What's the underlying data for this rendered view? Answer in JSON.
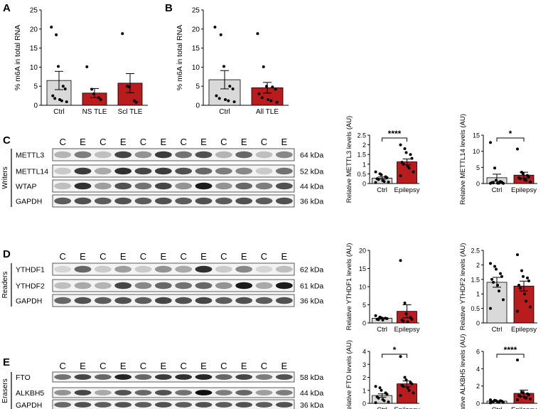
{
  "panel_letters": [
    "A",
    "B",
    "C",
    "D",
    "E"
  ],
  "colors": {
    "ctrl_fill": "#d9d9d9",
    "tle_fill": "#b81c1c",
    "axis": "#000000",
    "point": "#000000"
  },
  "chart_data": [
    {
      "id": "A",
      "type": "bar",
      "ylabel": "% m6A in total RNA",
      "ylim": [
        0,
        25
      ],
      "yticks": [
        0,
        5,
        10,
        15,
        20,
        25
      ],
      "categories": [
        "Ctrl",
        "NS TLE",
        "Scl TLE"
      ],
      "values": [
        6.5,
        3.2,
        5.8
      ],
      "sem": [
        2.4,
        1.2,
        2.5
      ],
      "points": [
        [
          20.5,
          18.5,
          10.2,
          5.0,
          4.3,
          2.5,
          1.8,
          1.5,
          1.2,
          0.9
        ],
        [
          10.1,
          4.2,
          3.0,
          2.0,
          1.5
        ],
        [
          18.8,
          5.0,
          4.8,
          1.2,
          0.8
        ]
      ],
      "bar_colors": [
        "#d9d9d9",
        "#b81c1c",
        "#b81c1c"
      ]
    },
    {
      "id": "B",
      "type": "bar",
      "ylabel": "% m6A in total RNA",
      "ylim": [
        0,
        25
      ],
      "yticks": [
        0,
        5,
        10,
        15,
        20,
        25
      ],
      "categories": [
        "Ctrl",
        "All TLE"
      ],
      "values": [
        6.7,
        4.6
      ],
      "sem": [
        2.4,
        1.4
      ],
      "points": [
        [
          20.5,
          18.5,
          10.2,
          5.0,
          4.3,
          2.5,
          1.8,
          1.5,
          1.2,
          0.9
        ],
        [
          18.8,
          10.1,
          5.0,
          4.8,
          4.2,
          3.0,
          2.0,
          1.5,
          1.2,
          0.8
        ]
      ],
      "bar_colors": [
        "#d9d9d9",
        "#b81c1c"
      ]
    },
    {
      "id": "C1",
      "type": "bar",
      "ylabel": "Relative METTL3 levels (AU)",
      "ylim": [
        0,
        2.5
      ],
      "yticks": [
        0,
        0.5,
        1,
        1.5,
        2,
        2.5
      ],
      "categories": [
        "Ctrl",
        "Epilepsy"
      ],
      "values": [
        0.28,
        1.12
      ],
      "sem": [
        0.06,
        0.15
      ],
      "points": [
        [
          0.6,
          0.5,
          0.45,
          0.35,
          0.3,
          0.25,
          0.2,
          0.15,
          0.1,
          0.08,
          0.05
        ],
        [
          2.0,
          1.8,
          1.6,
          1.5,
          1.3,
          1.1,
          1.0,
          0.9,
          0.8,
          0.6,
          0.4
        ]
      ],
      "bar_colors": [
        "#d9d9d9",
        "#b81c1c"
      ],
      "significance": "****"
    },
    {
      "id": "C2",
      "type": "bar",
      "ylabel": "Relative METTL14 levels (AU)",
      "ylim": [
        0,
        15
      ],
      "yticks": [
        0,
        5,
        10,
        15
      ],
      "categories": [
        "Ctrl",
        "Epilepsy"
      ],
      "values": [
        1.8,
        2.6
      ],
      "sem": [
        1.1,
        0.9
      ],
      "points": [
        [
          12.7,
          4.8,
          1.0,
          0.6,
          0.4,
          0.3,
          0.2,
          0.1,
          0.1,
          0.05,
          0.05
        ],
        [
          10.7,
          3.5,
          3.0,
          2.5,
          2.0,
          1.8,
          1.5,
          1.2,
          1.0,
          0.5
        ]
      ],
      "bar_colors": [
        "#d9d9d9",
        "#b81c1c"
      ],
      "significance": "*"
    },
    {
      "id": "D1",
      "type": "bar",
      "ylabel": "Relative YTHDF1 levels (AU)",
      "ylim": [
        0,
        20
      ],
      "yticks": [
        0,
        5,
        10,
        15,
        20
      ],
      "categories": [
        "Ctrl",
        "Epilepsy"
      ],
      "values": [
        1.3,
        3.2
      ],
      "sem": [
        0.2,
        1.8
      ],
      "points": [
        [
          2.0,
          1.6,
          1.4,
          1.3,
          1.2,
          1.0,
          0.9,
          0.8
        ],
        [
          17.2,
          5.5,
          2.5,
          1.5,
          1.0,
          0.8,
          0.5,
          0.3
        ]
      ],
      "bar_colors": [
        "#d9d9d9",
        "#b81c1c"
      ]
    },
    {
      "id": "D2",
      "type": "bar",
      "ylabel": "Relative YTHDF2 levels (AU)",
      "ylim": [
        0,
        2.5
      ],
      "yticks": [
        0,
        0.5,
        1,
        1.5,
        2,
        2.5
      ],
      "categories": [
        "Ctrl",
        "Epilepsy"
      ],
      "values": [
        1.4,
        1.27
      ],
      "sem": [
        0.17,
        0.17
      ],
      "points": [
        [
          2.05,
          1.95,
          1.85,
          1.7,
          1.6,
          1.5,
          1.4,
          1.3,
          1.1,
          0.8,
          0.5
        ],
        [
          2.35,
          1.8,
          1.6,
          1.55,
          1.45,
          1.3,
          1.2,
          1.0,
          0.75,
          0.55,
          0.4
        ]
      ],
      "bar_colors": [
        "#d9d9d9",
        "#b81c1c"
      ]
    },
    {
      "id": "E1",
      "type": "bar",
      "ylabel": "Relative FTO levels (AU)",
      "ylim": [
        0,
        4
      ],
      "yticks": [
        0,
        1,
        2,
        3,
        4
      ],
      "categories": [
        "Ctrl",
        "Epilepsy"
      ],
      "values": [
        0.6,
        1.5
      ],
      "sem": [
        0.13,
        0.22
      ],
      "points": [
        [
          1.3,
          1.2,
          1.0,
          0.8,
          0.7,
          0.5,
          0.4,
          0.3,
          0.2,
          0.1,
          0.05
        ],
        [
          3.6,
          2.0,
          1.8,
          1.6,
          1.5,
          1.4,
          1.3,
          1.2,
          1.0,
          0.8,
          0.6
        ]
      ],
      "bar_colors": [
        "#d9d9d9",
        "#b81c1c"
      ],
      "significance": "*"
    },
    {
      "id": "E2",
      "type": "bar",
      "ylabel": "Relative ALKBH5 levels (AU)",
      "ylim": [
        0,
        6
      ],
      "yticks": [
        0,
        2,
        4,
        6
      ],
      "categories": [
        "Ctrl",
        "Epilepsy"
      ],
      "values": [
        0.25,
        1.15
      ],
      "sem": [
        0.05,
        0.38
      ],
      "points": [
        [
          0.4,
          0.35,
          0.3,
          0.3,
          0.25,
          0.2,
          0.2,
          0.15,
          0.1,
          0.1,
          0.05
        ],
        [
          5.0,
          1.3,
          1.2,
          1.1,
          1.0,
          0.9,
          0.8,
          0.7,
          0.6,
          0.5,
          0.4
        ]
      ],
      "bar_colors": [
        "#d9d9d9",
        "#b81c1c"
      ],
      "significance": "****"
    }
  ],
  "blots": [
    {
      "id": "C",
      "group_label": "Writers",
      "lane_labels": [
        "C",
        "E",
        "C",
        "E",
        "C",
        "E",
        "C",
        "E",
        "C",
        "E",
        "C",
        "E"
      ],
      "rows": [
        {
          "protein": "METTL3",
          "kda": "64 kDa",
          "intensity": [
            0.25,
            0.5,
            0.2,
            0.75,
            0.4,
            0.8,
            0.55,
            0.7,
            0.25,
            0.6,
            0.2,
            0.45
          ]
        },
        {
          "protein": "METTL14",
          "kda": "52 kDa",
          "intensity": [
            0.15,
            0.8,
            0.3,
            0.85,
            0.75,
            0.8,
            0.7,
            0.6,
            0.5,
            0.45,
            0.15,
            0.55
          ]
        },
        {
          "protein": "WTAP",
          "kda": "44 kDa",
          "intensity": [
            0.2,
            0.85,
            0.35,
            0.7,
            0.55,
            0.75,
            0.4,
            0.95,
            0.4,
            0.6,
            0.5,
            0.7
          ]
        },
        {
          "protein": "GAPDH",
          "kda": "36 kDa",
          "intensity": [
            0.65,
            0.7,
            0.65,
            0.7,
            0.65,
            0.7,
            0.65,
            0.7,
            0.65,
            0.7,
            0.65,
            0.7
          ]
        }
      ]
    },
    {
      "id": "D",
      "group_label": "Readers",
      "lane_labels": [
        "C",
        "E",
        "C",
        "E",
        "C",
        "E",
        "C",
        "E",
        "C",
        "E",
        "C",
        "E"
      ],
      "rows": [
        {
          "protein": "YTHDF1",
          "kda": "62 kDa",
          "intensity": [
            0.1,
            0.6,
            0.15,
            0.35,
            0.15,
            0.4,
            0.3,
            0.85,
            0.15,
            0.45,
            0.1,
            0.2
          ]
        },
        {
          "protein": "YTHDF2",
          "kda": "61 kDa",
          "intensity": [
            0.2,
            0.3,
            0.25,
            0.75,
            0.45,
            0.6,
            0.55,
            0.6,
            0.4,
            0.95,
            0.3,
            0.95
          ]
        },
        {
          "protein": "GAPDH",
          "kda": "36 kDa",
          "intensity": [
            0.6,
            0.7,
            0.65,
            0.7,
            0.65,
            0.75,
            0.7,
            0.75,
            0.65,
            0.7,
            0.65,
            0.7
          ]
        }
      ]
    },
    {
      "id": "E",
      "group_label": "Erasers",
      "lane_labels": [
        "C",
        "E",
        "C",
        "E",
        "C",
        "E",
        "C",
        "E",
        "C",
        "E",
        "C",
        "E"
      ],
      "rows": [
        {
          "protein": "FTO",
          "kda": "58 kDa",
          "intensity": [
            0.55,
            0.75,
            0.6,
            0.9,
            0.6,
            0.8,
            0.85,
            0.9,
            0.6,
            0.75,
            0.5,
            0.7
          ]
        },
        {
          "protein": "ALKBH5",
          "kda": "44 kDa",
          "intensity": [
            0.4,
            0.75,
            0.3,
            0.7,
            0.6,
            0.7,
            0.55,
            1.0,
            0.5,
            0.6,
            0.35,
            0.5
          ]
        },
        {
          "protein": "GAPDH",
          "kda": "36 kDa",
          "intensity": [
            0.6,
            0.7,
            0.65,
            0.7,
            0.65,
            0.7,
            0.65,
            0.7,
            0.65,
            0.7,
            0.65,
            0.7
          ]
        }
      ]
    }
  ]
}
